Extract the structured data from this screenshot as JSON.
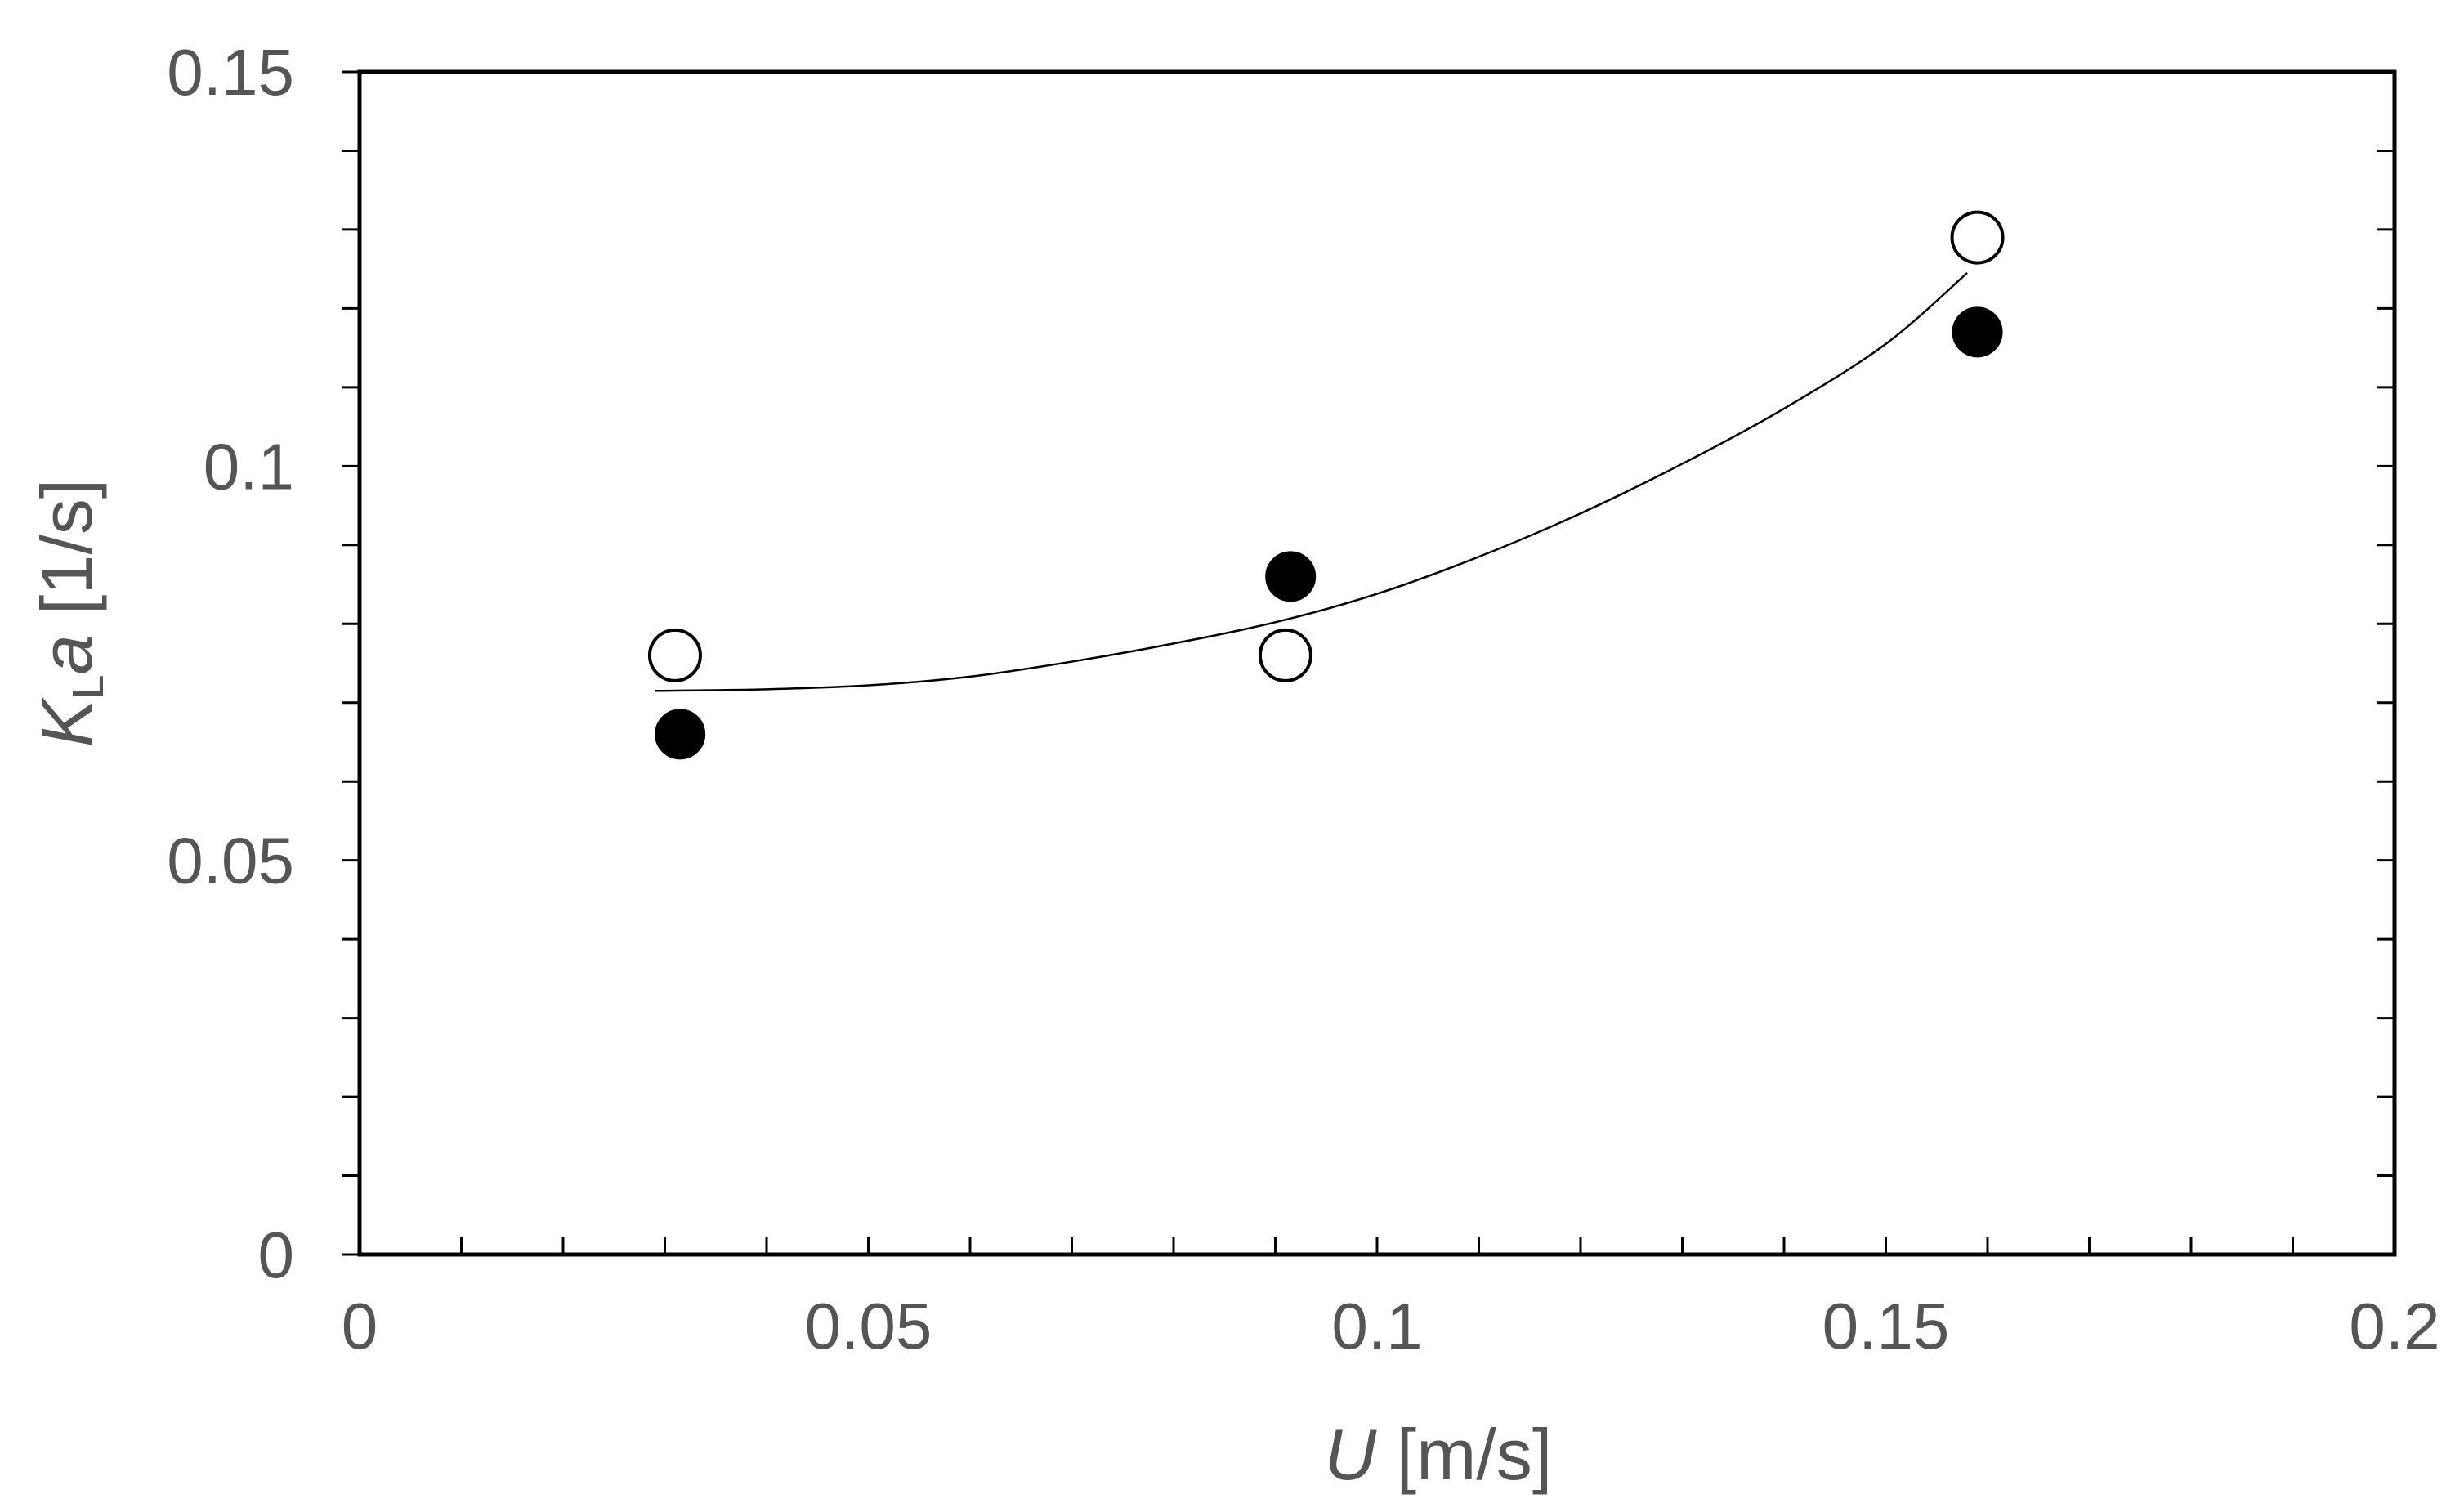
{
  "chart_data": {
    "type": "scatter",
    "title": "",
    "xlabel": {
      "symbol": "U",
      "unit": " [m/s]"
    },
    "ylabel": {
      "symbol": "K",
      "subscript": "L",
      "symbol2": "a",
      "unit": " [1/s]"
    },
    "xlim": [
      0,
      0.2
    ],
    "ylim": [
      0,
      0.15
    ],
    "x_ticks": [
      "0",
      "0.05",
      "0.1",
      "0.15",
      "0.2"
    ],
    "y_ticks": [
      "0",
      "0.05",
      "0.1",
      "0.15"
    ],
    "x_minor_step": 0.01,
    "y_minor_step": 0.01,
    "grid": false,
    "legend": "none",
    "series": [
      {
        "marker": "open-circle",
        "color": "#000000",
        "points": [
          {
            "x": 0.031,
            "y": 0.076
          },
          {
            "x": 0.091,
            "y": 0.076
          },
          {
            "x": 0.159,
            "y": 0.129
          }
        ]
      },
      {
        "marker": "filled-circle",
        "color": "#000000",
        "points": [
          {
            "x": 0.0315,
            "y": 0.066
          },
          {
            "x": 0.0915,
            "y": 0.086
          },
          {
            "x": 0.159,
            "y": 0.117
          }
        ]
      }
    ],
    "trend_line": {
      "style": "smooth",
      "color": "#000000",
      "points": [
        {
          "x": 0.029,
          "y": 0.0715
        },
        {
          "x": 0.04,
          "y": 0.0717
        },
        {
          "x": 0.05,
          "y": 0.0722
        },
        {
          "x": 0.06,
          "y": 0.0733
        },
        {
          "x": 0.07,
          "y": 0.0752
        },
        {
          "x": 0.08,
          "y": 0.0775
        },
        {
          "x": 0.09,
          "y": 0.0802
        },
        {
          "x": 0.1,
          "y": 0.0838
        },
        {
          "x": 0.11,
          "y": 0.0885
        },
        {
          "x": 0.12,
          "y": 0.094
        },
        {
          "x": 0.13,
          "y": 0.1003
        },
        {
          "x": 0.14,
          "y": 0.1073
        },
        {
          "x": 0.15,
          "y": 0.1155
        },
        {
          "x": 0.158,
          "y": 0.1245
        }
      ]
    }
  }
}
